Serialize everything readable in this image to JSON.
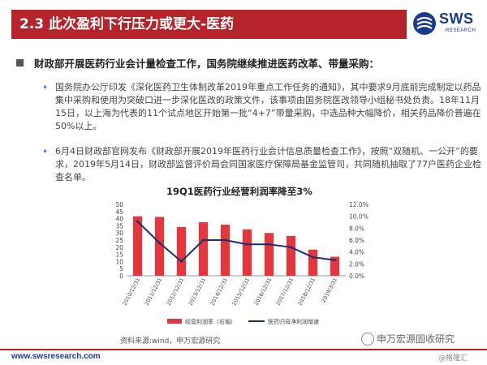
{
  "header": {
    "title": "2.3 此次盈利下行压力或更大-医药",
    "brand": "SWS",
    "brand_sub": "RESEARCH"
  },
  "section": {
    "heading": "财政部开展医药行业会计量检查工作，国务院继续推进医药改革、带量采购："
  },
  "bullets": [
    {
      "marker": "•",
      "text": "国务院办公厅印发《深化医药卫生体制改革2019年重点工作任务的通知》，其中要求9月底前完成制定以药品集中采购和使用为突破口进一步深化医改的政策文件，该事项由国务院医改领导小组秘书处负责。18年11月15日，以上海为代表的11个试点地区开始第一批“4+7”带量采购，中选品种大幅降价，相关药品降价普遍在50%以上。"
    },
    {
      "marker": "•",
      "text": "6月4日财政部官网发布《财政部开展2019年医药行业会计信息质量检查工作》，按照“双随机、一公开”的要求，2019年5月14日，财政部监督评价局会同国家医疗保障局基金监管司，共同随机抽取了77户医药企业检查名单。"
    }
  ],
  "chart_data": {
    "type": "bar",
    "title": "19Q1医药行业经营利润率降至3%",
    "categories": [
      "2010/12/31",
      "2011/12/31",
      "2012/12/31",
      "2013/12/31",
      "2014/12/31",
      "2015/12/31",
      "2016/12/31",
      "2017/12/31",
      "2018/12/31",
      "2019/3/31"
    ],
    "series": [
      {
        "name": "经营利润率（右轴）",
        "kind": "bar",
        "axis": "right",
        "color": "#e0383e",
        "values": [
          10.0,
          9.9,
          8.2,
          9.0,
          8.6,
          7.8,
          7.2,
          6.7,
          4.4,
          3.2
        ]
      },
      {
        "name": "医药归母净利润增速",
        "kind": "line",
        "axis": "left",
        "color": "#1c2f6e",
        "values": [
          38,
          23,
          10,
          25,
          25,
          22,
          22,
          20,
          13,
          11
        ]
      }
    ],
    "left_axis": {
      "ticks": [
        "0",
        "5",
        "10",
        "15",
        "20",
        "25",
        "30",
        "35",
        "40",
        "45",
        "50"
      ],
      "ylim": [
        0,
        50
      ]
    },
    "right_axis": {
      "ticks": [
        "0.0%",
        "2.0%",
        "4.0%",
        "6.0%",
        "8.0%",
        "10.0%",
        "12.0%"
      ],
      "ylim": [
        0,
        12
      ]
    },
    "legend_position": "bottom"
  },
  "source": "资料来源:wind，申万宏源研究",
  "watermark": "申万宏源固收研究",
  "footer": {
    "url": "www.swsresearch.com",
    "page": "@格隆汇"
  }
}
